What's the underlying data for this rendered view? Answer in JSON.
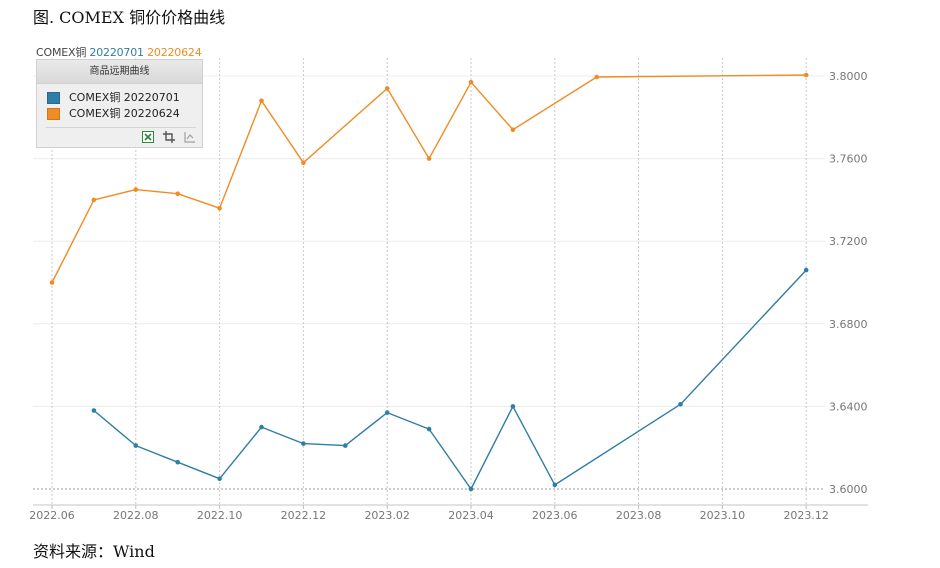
{
  "figure": {
    "title": "图. COMEX 铜价价格曲线",
    "source": "资料来源：Wind"
  },
  "header": {
    "prefix": "COMEX铜",
    "series_1": "20220701",
    "series_2": "20220624"
  },
  "legend": {
    "title": "商品远期曲线",
    "items": [
      {
        "label": "COMEX铜 20220701",
        "color": "#2e7ea5"
      },
      {
        "label": "COMEX铜 20220624",
        "color": "#f08c24"
      }
    ],
    "tools": [
      {
        "name": "export-excel-icon",
        "color": "#2a8a3a"
      },
      {
        "name": "crop-icon",
        "color": "#555555"
      },
      {
        "name": "disabled-chart-icon",
        "color": "#a0a0a0"
      }
    ]
  },
  "colors": {
    "series_blue": "#2e7ea5",
    "series_orange": "#f08c24",
    "grid": "#c8c8c8",
    "axis_text": "#777777"
  },
  "chart_data": {
    "type": "line",
    "x_ticks": [
      "2022.06",
      "2022.08",
      "2022.10",
      "2022.12",
      "2023.02",
      "2023.04",
      "2023.06",
      "2023.08",
      "2023.10",
      "2023.12"
    ],
    "y_ticks": [
      "3.6000",
      "3.6400",
      "3.6800",
      "3.7200",
      "3.7600",
      "3.8000"
    ],
    "ylim": [
      3.6,
      3.8
    ],
    "y_axis_position": "right",
    "grid": true,
    "legend_position": "top-left",
    "series": [
      {
        "name": "COMEX铜 20220701",
        "color": "#2e7ea5",
        "points": [
          {
            "x": "2022-07",
            "y": 3.638
          },
          {
            "x": "2022-08",
            "y": 3.621
          },
          {
            "x": "2022-09",
            "y": 3.613
          },
          {
            "x": "2022-10",
            "y": 3.605
          },
          {
            "x": "2022-11",
            "y": 3.63
          },
          {
            "x": "2022-12",
            "y": 3.622
          },
          {
            "x": "2023-01",
            "y": 3.621
          },
          {
            "x": "2023-02",
            "y": 3.637
          },
          {
            "x": "2023-03",
            "y": 3.629
          },
          {
            "x": "2023-04",
            "y": 3.6
          },
          {
            "x": "2023-05",
            "y": 3.64
          },
          {
            "x": "2023-06",
            "y": 3.602
          },
          {
            "x": "2023-09",
            "y": 3.641
          },
          {
            "x": "2023-12",
            "y": 3.706
          }
        ]
      },
      {
        "name": "COMEX铜 20220624",
        "color": "#f08c24",
        "points": [
          {
            "x": "2022-06",
            "y": 3.7
          },
          {
            "x": "2022-07",
            "y": 3.74
          },
          {
            "x": "2022-08",
            "y": 3.745
          },
          {
            "x": "2022-09",
            "y": 3.743
          },
          {
            "x": "2022-10",
            "y": 3.736
          },
          {
            "x": "2022-11",
            "y": 3.788
          },
          {
            "x": "2022-12",
            "y": 3.758
          },
          {
            "x": "2023-02",
            "y": 3.794
          },
          {
            "x": "2023-03",
            "y": 3.76
          },
          {
            "x": "2023-04",
            "y": 3.797
          },
          {
            "x": "2023-05",
            "y": 3.774
          },
          {
            "x": "2023-07",
            "y": 3.7995
          },
          {
            "x": "2023-12",
            "y": 3.8005
          }
        ]
      }
    ]
  }
}
